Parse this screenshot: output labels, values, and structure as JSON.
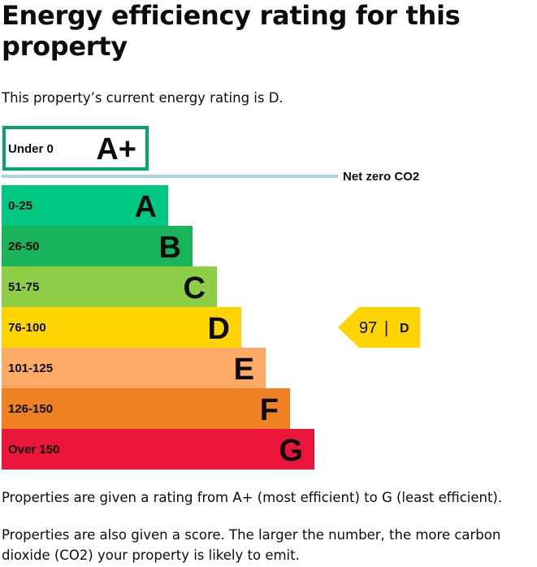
{
  "heading": "Energy efficiency rating for this property",
  "intro": "This property’s current energy rating is D.",
  "paragraphs": [
    "Properties are given a rating from A+ (most efficient) to G (least efficient).",
    "Properties are also given a score. The larger the number, the more carbon dioxide (CO2) your property is likely to emit."
  ],
  "chart_data": {
    "type": "bar",
    "bands": [
      {
        "range": "Under 0",
        "letter": "A+",
        "color": "#ffffff",
        "border": "#00a86b",
        "outlined": true
      },
      {
        "range": "0-25",
        "letter": "A",
        "color": "#00c781"
      },
      {
        "range": "26-50",
        "letter": "B",
        "color": "#19b459"
      },
      {
        "range": "51-75",
        "letter": "C",
        "color": "#8dce46"
      },
      {
        "range": "76-100",
        "letter": "D",
        "color": "#ffd500"
      },
      {
        "range": "101-125",
        "letter": "E",
        "color": "#fcaa65"
      },
      {
        "range": "126-150",
        "letter": "F",
        "color": "#ef8023"
      },
      {
        "range": "Over 150",
        "letter": "G",
        "color": "#e9153b"
      }
    ],
    "net_zero": {
      "label": "Net zero CO2",
      "color": "#a8d3df"
    },
    "current": {
      "score": "97",
      "separator": "|",
      "letter": "D",
      "band": "D",
      "color": "#ffd500"
    }
  }
}
